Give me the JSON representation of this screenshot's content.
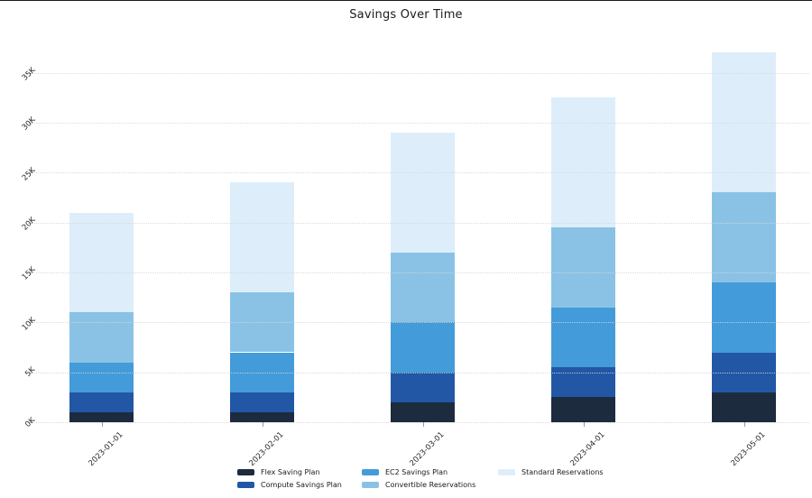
{
  "chart_data": {
    "type": "bar",
    "stacked": true,
    "title": "Savings Over Time",
    "categories": [
      "2023-01-01",
      "2023-02-01",
      "2023-03-01",
      "2023-04-01",
      "2023-05-01"
    ],
    "series": [
      {
        "name": "Flex Saving Plan",
        "color": "#1c2b3e",
        "values": [
          1000,
          1000,
          2000,
          2500,
          3000
        ]
      },
      {
        "name": "Compute Savings Plan",
        "color": "#2257a6",
        "values": [
          2000,
          2000,
          3000,
          3000,
          4000
        ]
      },
      {
        "name": "EC2 Savings Plan",
        "color": "#449bd9",
        "values": [
          3000,
          4000,
          5000,
          6000,
          7000
        ]
      },
      {
        "name": "Convertible Reservations",
        "color": "#8ac2e6",
        "values": [
          5000,
          6000,
          7000,
          8000,
          9000
        ]
      },
      {
        "name": "Standard Reservations",
        "color": "#ddeefa",
        "values": [
          10000,
          11000,
          12000,
          13000,
          14000
        ]
      }
    ],
    "totals": [
      21000,
      24000,
      29000,
      32500,
      37000
    ],
    "ytick_labels": [
      "0K",
      "5K",
      "10K",
      "15K",
      "20K",
      "25K",
      "30K",
      "35K"
    ],
    "ytick_values": [
      0,
      5000,
      10000,
      15000,
      20000,
      25000,
      30000,
      35000
    ],
    "ylim": [
      0,
      37000
    ],
    "xlabel": "",
    "ylabel": "",
    "grid": "horizontal-dotted",
    "legend_position": "bottom"
  }
}
